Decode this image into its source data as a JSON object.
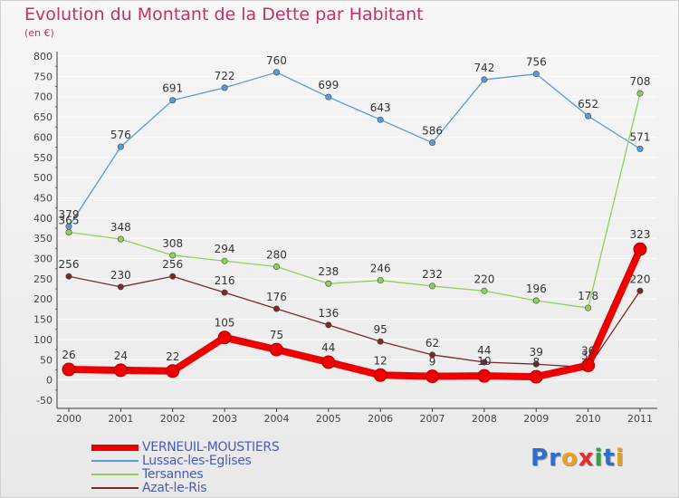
{
  "title": "Evolution du Montant de la Dette par Habitant",
  "subtitle": "(en €)",
  "logo": {
    "p": "P",
    "r": "r",
    "o": "o",
    "x": "x",
    "i": "i",
    "t": "t",
    "i2": "i"
  },
  "colors": {
    "title": "#c0306a",
    "axis_text": "#444444",
    "grid": "#ffffff",
    "axis": "#3a3a3a",
    "label": "#333333",
    "logo": [
      "#2d6fcb",
      "#2d6fcb",
      "#f0a020",
      "#e03030",
      "#34a045",
      "#2d6fcb",
      "#e0a020"
    ]
  },
  "chart_data": {
    "type": "line",
    "x": [
      "2000",
      "2001",
      "2002",
      "2003",
      "2004",
      "2005",
      "2006",
      "2007",
      "2008",
      "2009",
      "2010",
      "2011"
    ],
    "ylim": [
      -50,
      800
    ],
    "yticks": [
      -50,
      0,
      50,
      100,
      150,
      200,
      250,
      300,
      350,
      400,
      450,
      500,
      550,
      600,
      650,
      700,
      750,
      800
    ],
    "grid": "horizontal",
    "legend": "bottom-left",
    "series": [
      {
        "name": "Lussac-les-Eglises",
        "color": "#5b9bd5",
        "weight": "thin",
        "values": [
          379,
          576,
          691,
          722,
          760,
          699,
          643,
          586,
          742,
          756,
          652,
          571
        ],
        "labels": [
          "379",
          "576",
          "691",
          "722",
          "760",
          "699",
          "643",
          "586",
          "742",
          "756",
          "652",
          "571"
        ]
      },
      {
        "name": "Tersannes",
        "color": "#8fd15a",
        "weight": "thin",
        "values": [
          365,
          348,
          308,
          294,
          280,
          238,
          246,
          232,
          220,
          196,
          178,
          708
        ],
        "labels": [
          "365",
          "348",
          "308",
          "294",
          "280",
          "238",
          "246",
          "232",
          "220",
          "196",
          "178",
          "708"
        ]
      },
      {
        "name": "Azat-le-Ris",
        "color": "#7a2a2a",
        "weight": "thin",
        "values": [
          256,
          230,
          256,
          216,
          176,
          136,
          95,
          62,
          44,
          39,
          31,
          220
        ],
        "labels": [
          "256",
          "230",
          "256",
          "216",
          "176",
          "136",
          "95",
          "62",
          "44",
          "39",
          "31",
          "220"
        ]
      },
      {
        "name": "VERNEUIL-MOUSTIERS",
        "color": "#ee0000",
        "weight": "thick",
        "values": [
          26,
          24,
          22,
          105,
          75,
          44,
          12,
          9,
          10,
          8,
          36,
          323
        ],
        "labels": [
          "26",
          "24",
          "22",
          "105",
          "75",
          "44",
          "12",
          "9",
          "10",
          "8",
          "36",
          "323"
        ]
      }
    ],
    "legend_order": [
      "VERNEUIL-MOUSTIERS",
      "Lussac-les-Eglises",
      "Tersannes",
      "Azat-le-Ris"
    ]
  }
}
